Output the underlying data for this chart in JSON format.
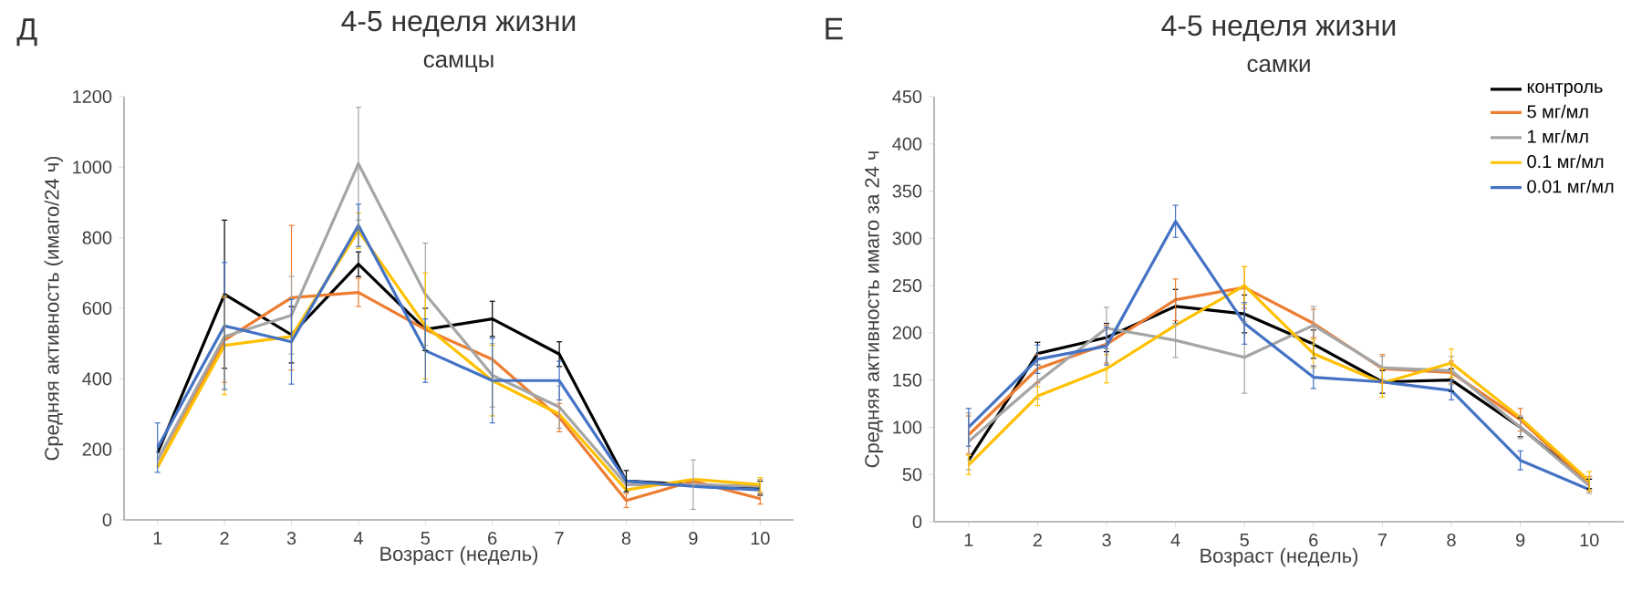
{
  "chart_data": [
    {
      "type": "line",
      "title": "4-5 неделя жизни",
      "subtitle": "самцы",
      "xlabel": "Возраст (недель)",
      "ylabel": "Средняя активность (имаго/24 ч)",
      "annotations": [
        "Д"
      ],
      "x": [
        1,
        2,
        3,
        4,
        5,
        6,
        7,
        8,
        9,
        10
      ],
      "xlim": [
        0.5,
        10.5
      ],
      "xticks": [
        1,
        2,
        3,
        4,
        5,
        6,
        7,
        8,
        9,
        10
      ],
      "ylim": [
        0,
        1200
      ],
      "yticks": [
        0,
        200,
        400,
        600,
        800,
        1000,
        1200
      ],
      "marker": "none",
      "line_style": "solid",
      "series": [
        {
          "color": "#000000",
          "values": [
            190,
            640,
            525,
            725,
            540,
            570,
            470,
            110,
            100,
            90
          ],
          "errors": [
            null,
            210,
            80,
            35,
            60,
            50,
            35,
            30,
            null,
            20
          ]
        },
        {
          "color": "#ed7d31",
          "values": [
            150,
            510,
            630,
            645,
            540,
            455,
            290,
            55,
            110,
            60
          ],
          "errors": [
            null,
            120,
            205,
            40,
            null,
            null,
            40,
            20,
            null,
            15
          ]
        },
        {
          "color": "#a5a5a5",
          "values": [
            170,
            520,
            580,
            1010,
            640,
            410,
            320,
            100,
            100,
            95
          ],
          "errors": [
            null,
            null,
            110,
            160,
            145,
            90,
            60,
            null,
            70,
            20
          ]
        },
        {
          "color": "#ffc000",
          "values": [
            150,
            495,
            520,
            820,
            550,
            395,
            300,
            85,
            115,
            100
          ],
          "errors": [
            null,
            140,
            null,
            50,
            150,
            100,
            null,
            null,
            null,
            20
          ]
        },
        {
          "color": "#4472c4",
          "values": [
            205,
            550,
            505,
            835,
            480,
            395,
            395,
            110,
            95,
            85
          ],
          "errors": [
            70,
            180,
            120,
            60,
            90,
            120,
            55,
            null,
            null,
            null
          ]
        }
      ]
    },
    {
      "type": "line",
      "title": "4-5 неделя жизни",
      "subtitle": "самки",
      "xlabel": "Возраст (недель)",
      "ylabel": "Средняя активность имаго за 24 ч",
      "annotations": [
        "Е"
      ],
      "x": [
        1,
        2,
        3,
        4,
        5,
        6,
        7,
        8,
        9,
        10
      ],
      "xlim": [
        0.5,
        10.5
      ],
      "xticks": [
        1,
        2,
        3,
        4,
        5,
        6,
        7,
        8,
        9,
        10
      ],
      "ylim": [
        0,
        450
      ],
      "yticks": [
        0,
        50,
        100,
        150,
        200,
        250,
        300,
        350,
        400,
        450
      ],
      "marker": "none",
      "line_style": "solid",
      "legend": "top right",
      "series": [
        {
          "name": "контроль",
          "color": "#000000",
          "values": [
            65,
            178,
            195,
            228,
            220,
            188,
            148,
            150,
            100,
            40
          ],
          "errors": [
            null,
            12,
            15,
            18,
            20,
            15,
            12,
            12,
            10,
            5
          ]
        },
        {
          "name": "5 мг/мл",
          "color": "#ed7d31",
          "values": [
            92,
            162,
            188,
            235,
            248,
            210,
            162,
            158,
            108,
            40
          ],
          "errors": [
            20,
            15,
            20,
            22,
            22,
            15,
            15,
            12,
            12,
            8
          ]
        },
        {
          "name": "1 мг/мл",
          "color": "#a5a5a5",
          "values": [
            85,
            148,
            205,
            192,
            174,
            208,
            163,
            160,
            100,
            38
          ],
          "errors": [
            30,
            18,
            22,
            18,
            38,
            20,
            12,
            15,
            12,
            8
          ]
        },
        {
          "name": "0.1 мг/мл",
          "color": "#ffc000",
          "values": [
            60,
            133,
            162,
            208,
            250,
            178,
            147,
            168,
            110,
            43
          ],
          "errors": [
            10,
            10,
            15,
            null,
            20,
            15,
            15,
            15,
            null,
            10
          ]
        },
        {
          "name": "0.01 мг/мл",
          "color": "#4472c4",
          "values": [
            100,
            172,
            186,
            318,
            210,
            153,
            148,
            139,
            65,
            34
          ],
          "errors": [
            20,
            15,
            20,
            17,
            22,
            12,
            null,
            10,
            10,
            null
          ]
        }
      ]
    }
  ]
}
